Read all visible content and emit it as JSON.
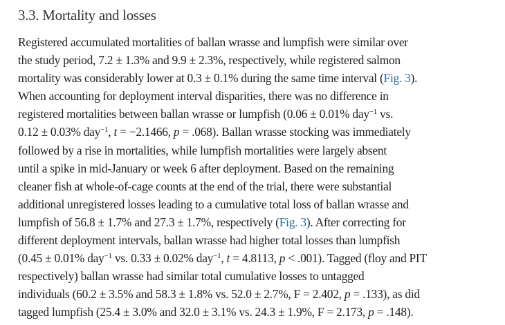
{
  "section": {
    "heading": "3.3. Mortality and losses"
  },
  "paragraph": {
    "lines": [
      [
        {
          "k": "t",
          "v": "Registered accumulated mortalities of ballan wrasse and lumpfish were similar over"
        }
      ],
      [
        {
          "k": "t",
          "v": "the study period, 7.2 ± 1.3% and 9.9 ± 2.3%, respectively, while registered salmon"
        }
      ],
      [
        {
          "k": "t",
          "v": "mortality was considerably lower at 0.3 ± 0.1% during the same time interval ("
        },
        {
          "k": "a",
          "v": "Fig. 3"
        },
        {
          "k": "t",
          "v": ")."
        }
      ],
      [
        {
          "k": "t",
          "v": "When accounting for deployment interval disparities, there was no difference in"
        }
      ],
      [
        {
          "k": "t",
          "v": "registered mortalities between ballan wrasse or lumpfish (0.06 ± 0.01% day"
        },
        {
          "k": "s",
          "v": "−1"
        },
        {
          "k": "t",
          "v": " vs."
        }
      ],
      [
        {
          "k": "t",
          "v": "0.12 ± 0.03% day"
        },
        {
          "k": "s",
          "v": "−1"
        },
        {
          "k": "t",
          "v": ", "
        },
        {
          "k": "i",
          "v": "t"
        },
        {
          "k": "t",
          "v": " = −2.1466, "
        },
        {
          "k": "i",
          "v": "p"
        },
        {
          "k": "t",
          "v": " = .068). Ballan wrasse stocking was immediately"
        }
      ],
      [
        {
          "k": "t",
          "v": "followed by a rise in mortalities, while lumpfish mortalities were largely absent"
        }
      ],
      [
        {
          "k": "t",
          "v": "until a spike in mid-January or week 6 after deployment. Based on the remaining"
        }
      ],
      [
        {
          "k": "t",
          "v": "cleaner fish at whole-of-cage counts at the end of the trial, there were substantial"
        }
      ],
      [
        {
          "k": "t",
          "v": "additional unregistered losses leading to a cumulative total loss of ballan wrasse and"
        }
      ],
      [
        {
          "k": "t",
          "v": "lumpfish of 56.8 ± 1.7% and 27.3 ± 1.7%, respectively ("
        },
        {
          "k": "a",
          "v": "Fig. 3"
        },
        {
          "k": "t",
          "v": "). After correcting for"
        }
      ],
      [
        {
          "k": "t",
          "v": "different deployment intervals, ballan wrasse had higher total losses than lumpfish"
        }
      ],
      [
        {
          "k": "t",
          "v": "(0.45 ± 0.01% day"
        },
        {
          "k": "s",
          "v": "−1"
        },
        {
          "k": "t",
          "v": " vs. 0.33 ± 0.02% day"
        },
        {
          "k": "s",
          "v": "−1"
        },
        {
          "k": "t",
          "v": ", "
        },
        {
          "k": "i",
          "v": "t"
        },
        {
          "k": "t",
          "v": " = 4.8113, "
        },
        {
          "k": "i",
          "v": "p"
        },
        {
          "k": "t",
          "v": " < .001). Tagged (floy and PIT"
        }
      ],
      [
        {
          "k": "t",
          "v": "respectively) ballan wrasse had similar total cumulative losses to untagged"
        }
      ],
      [
        {
          "k": "t",
          "v": "individuals (60.2 ± 3.5% and 58.3 ± 1.8% vs. 52.0 ± 2.7%, F = 2.402, "
        },
        {
          "k": "i",
          "v": "p"
        },
        {
          "k": "t",
          "v": " = .133), as did"
        }
      ],
      [
        {
          "k": "t",
          "v": "tagged lumpfish (25.4 ± 3.0% and 32.0 ± 3.1% vs. 24.3 ± 1.9%, F = 2.173, "
        },
        {
          "k": "i",
          "v": "p"
        },
        {
          "k": "t",
          "v": " = .148)."
        }
      ]
    ]
  },
  "colors": {
    "link": "#2a6f97",
    "text": "#222222"
  }
}
